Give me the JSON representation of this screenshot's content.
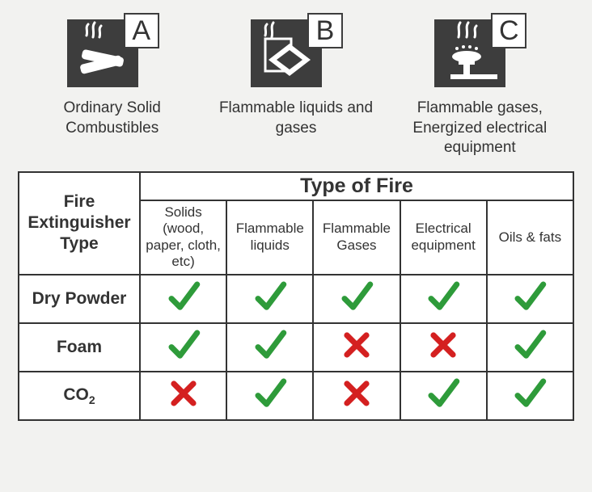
{
  "classes": [
    {
      "letter": "A",
      "caption": "Ordinary Solid Combustibles"
    },
    {
      "letter": "B",
      "caption": "Flammable liquids and gases"
    },
    {
      "letter": "C",
      "caption": "Flammable gases, Energized electrical equipment"
    }
  ],
  "table": {
    "corner_header": "Fire Extinguisher Type",
    "top_header": "Type of Fire",
    "columns": [
      "Solids (wood, paper, cloth, etc)",
      "Flammable liquids",
      "Flammable Gases",
      "Electrical equipment",
      "Oils & fats"
    ],
    "rows": [
      {
        "label": "Dry Powder",
        "marks": [
          "check",
          "check",
          "check",
          "check",
          "check"
        ]
      },
      {
        "label": "Foam",
        "marks": [
          "check",
          "check",
          "cross",
          "cross",
          "check"
        ]
      },
      {
        "label": "CO2",
        "marks": [
          "cross",
          "check",
          "cross",
          "check",
          "check"
        ]
      }
    ]
  },
  "style": {
    "check_color": "#2e9b3a",
    "cross_color": "#d42020",
    "icon_bg": "#3d3d3d",
    "icon_fg": "#ffffff",
    "border_color": "#333333",
    "page_bg": "#f2f2f0",
    "text_color": "#333333",
    "caption_fontsize": 19,
    "header_fontsize": 21,
    "top_header_fontsize": 25,
    "subheader_fontsize": 17
  }
}
